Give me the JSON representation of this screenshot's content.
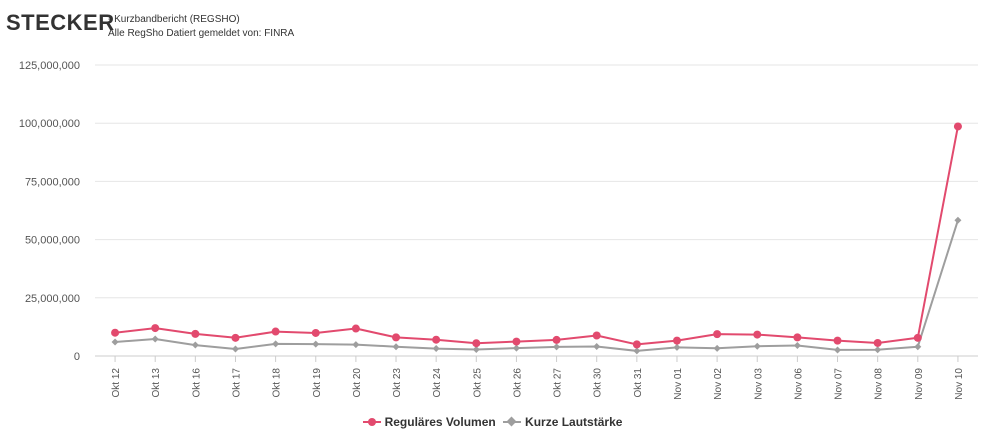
{
  "chart_data": {
    "type": "line",
    "title": "STECKER",
    "subtitle_lines": [
      "- Kurzbandbericht (REGSHO)",
      "Alle RegSho Datiert gemeldet von: FINRA"
    ],
    "categories": [
      "Okt 12",
      "Okt 13",
      "Okt 16",
      "Okt 17",
      "Okt 18",
      "Okt 19",
      "Okt 20",
      "Okt 23",
      "Okt 24",
      "Okt 25",
      "Okt 26",
      "Okt 27",
      "Okt 30",
      "Okt 31",
      "Nov 01",
      "Nov 02",
      "Nov 03",
      "Nov 06",
      "Nov 07",
      "Nov 08",
      "Nov 09",
      "Nov 10"
    ],
    "series": [
      {
        "name": "Reguläres Volumen",
        "color": "#e24a6e",
        "marker": "circle",
        "values": [
          10000000,
          12000000,
          9500000,
          7800000,
          10500000,
          9900000,
          11800000,
          8000000,
          7000000,
          5500000,
          6200000,
          6900000,
          8800000,
          5000000,
          6600000,
          9400000,
          9200000,
          8000000,
          6600000,
          5600000,
          7800000,
          98600000
        ]
      },
      {
        "name": "Kurze Lautstärke",
        "color": "#9e9e9e",
        "marker": "diamond",
        "values": [
          6000000,
          7300000,
          4700000,
          3000000,
          5200000,
          5100000,
          4900000,
          4000000,
          3200000,
          2800000,
          3400000,
          3900000,
          4100000,
          2200000,
          3700000,
          3300000,
          4200000,
          4500000,
          2600000,
          2700000,
          4000000,
          58300000
        ]
      }
    ],
    "yticks": [
      {
        "value": 0,
        "label": "0"
      },
      {
        "value": 25000000,
        "label": "25,000,000"
      },
      {
        "value": 50000000,
        "label": "50,000,000"
      },
      {
        "value": 75000000,
        "label": "75,000,000"
      },
      {
        "value": 100000000,
        "label": "100,000,000"
      },
      {
        "value": 125000000,
        "label": "125,000,000"
      }
    ],
    "ylim": [
      0,
      125000000
    ],
    "grid": true,
    "legend_position": "bottom-center",
    "axis_color": "#cccccc",
    "grid_color": "#e6e6e6"
  }
}
